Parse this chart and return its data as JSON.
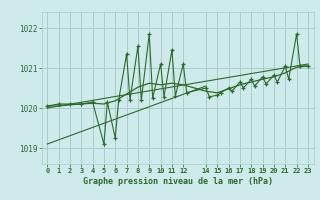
{
  "title": "Graphe pression niveau de la mer (hPa)",
  "bg_color": "#ceeaea",
  "grid_color": "#aacccc",
  "line_color": "#2d6a2d",
  "xlim": [
    -0.5,
    23.5
  ],
  "ylim": [
    1018.6,
    1022.4
  ],
  "yticks": [
    1019,
    1020,
    1021,
    1022
  ],
  "xticks": [
    0,
    1,
    2,
    3,
    4,
    5,
    6,
    7,
    8,
    9,
    10,
    11,
    12,
    14,
    15,
    16,
    17,
    18,
    19,
    20,
    21,
    22,
    23
  ],
  "trend1_x": [
    0,
    23
  ],
  "trend1_y": [
    1020.0,
    1021.1
  ],
  "trend2_x": [
    0,
    14
  ],
  "trend2_y": [
    1019.1,
    1020.55
  ],
  "smooth_x": [
    0,
    1,
    2,
    3,
    4,
    5,
    6,
    7,
    8,
    9,
    10,
    11,
    12,
    14,
    15,
    16,
    17,
    18,
    19,
    20,
    21,
    22,
    23
  ],
  "smooth_y": [
    1020.05,
    1020.05,
    1020.08,
    1020.1,
    1020.12,
    1020.1,
    1020.18,
    1020.35,
    1020.52,
    1020.62,
    1020.58,
    1020.62,
    1020.58,
    1020.42,
    1020.38,
    1020.48,
    1020.58,
    1020.65,
    1020.72,
    1020.78,
    1020.88,
    1021.02,
    1021.05
  ],
  "spiky_x": [
    0,
    1,
    2,
    3,
    4,
    5,
    5.3,
    6,
    6.3,
    7,
    7.3,
    8,
    8.3,
    9,
    9.3,
    10,
    10.3,
    11,
    11.3,
    12,
    12.3,
    14,
    14.3,
    15,
    15.3,
    16,
    16.3,
    17,
    17.3,
    18,
    18.3,
    19,
    19.3,
    20,
    20.3,
    21,
    21.3,
    22,
    22.3,
    23
  ],
  "spiky_y": [
    1020.05,
    1020.1,
    1020.1,
    1020.1,
    1020.15,
    1019.1,
    1020.15,
    1019.25,
    1020.2,
    1021.35,
    1020.2,
    1021.55,
    1020.2,
    1021.85,
    1020.25,
    1021.1,
    1020.28,
    1021.45,
    1020.3,
    1021.1,
    1020.38,
    1020.5,
    1020.28,
    1020.32,
    1020.38,
    1020.5,
    1020.42,
    1020.65,
    1020.5,
    1020.72,
    1020.55,
    1020.78,
    1020.6,
    1020.82,
    1020.65,
    1021.05,
    1020.72,
    1021.85,
    1021.05,
    1021.05
  ]
}
